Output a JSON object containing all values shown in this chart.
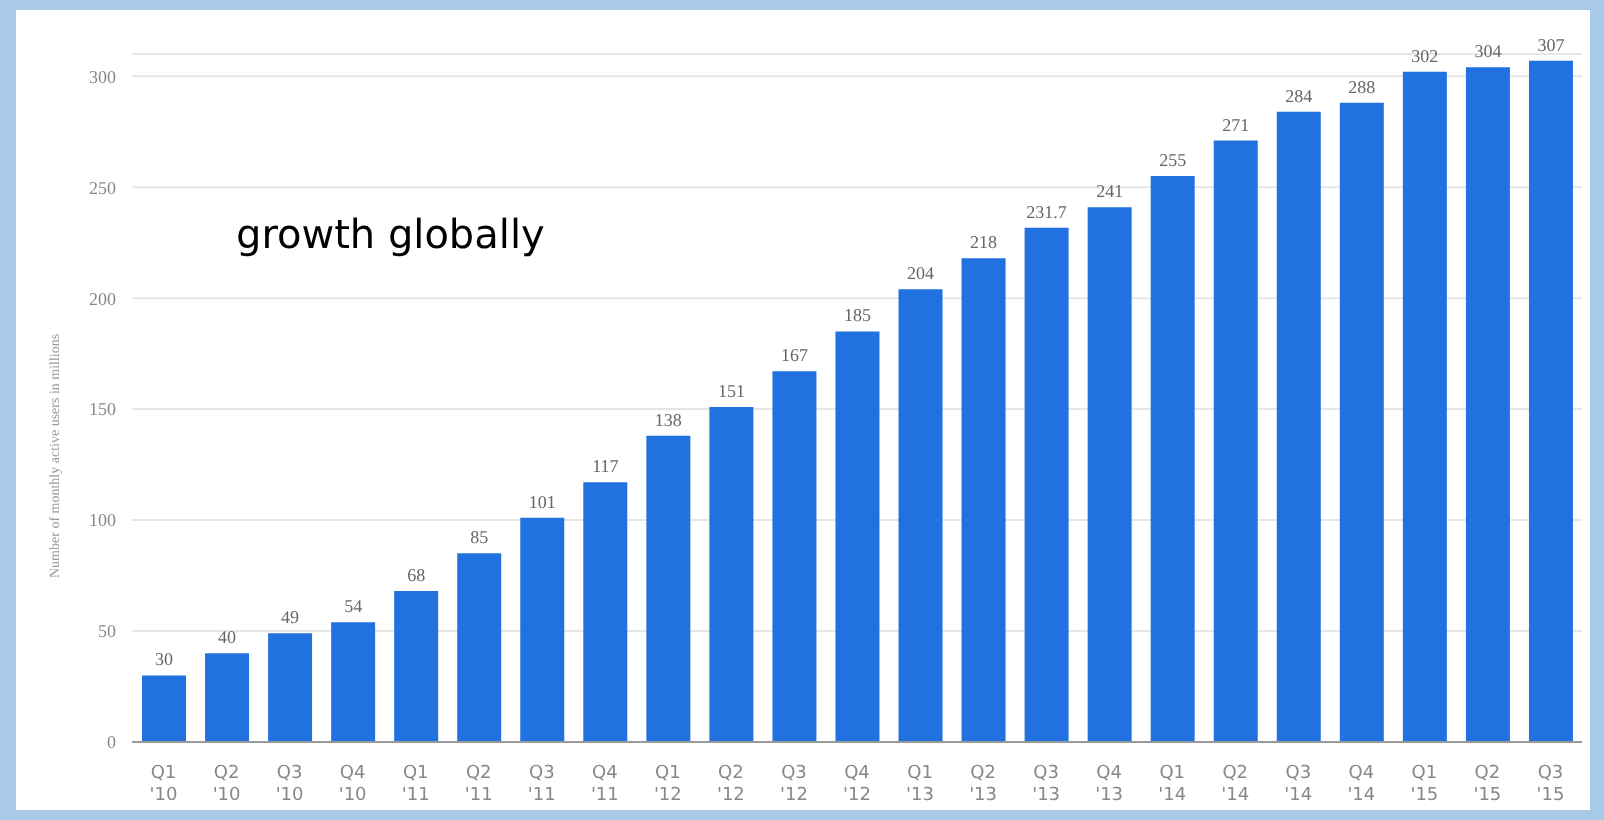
{
  "chart_data": {
    "type": "bar",
    "title": "growth globally",
    "ylabel": "Number of monthly active users in millions",
    "categories": [
      "Q1 '10",
      "Q2 '10",
      "Q3 '10",
      "Q4 '10",
      "Q1 '11",
      "Q2 '11",
      "Q3 '11",
      "Q4 '11",
      "Q1 '12",
      "Q2 '12",
      "Q3 '12",
      "Q4 '12",
      "Q1 '13",
      "Q2 '13",
      "Q3 '13",
      "Q4 '13",
      "Q1 '14",
      "Q2 '14",
      "Q3 '14",
      "Q4 '14",
      "Q1 '15",
      "Q2 '15",
      "Q3 '15"
    ],
    "values": [
      30,
      40,
      49,
      54,
      68,
      85,
      101,
      117,
      138,
      151,
      167,
      185,
      204,
      218,
      231.7,
      241,
      255,
      271,
      284,
      288,
      302,
      304,
      307
    ],
    "color": "#2172e0",
    "ylim": [
      0,
      310
    ],
    "yticks": [
      0,
      50,
      100,
      150,
      200,
      250,
      300
    ],
    "grid": "y",
    "data_labels": true
  }
}
